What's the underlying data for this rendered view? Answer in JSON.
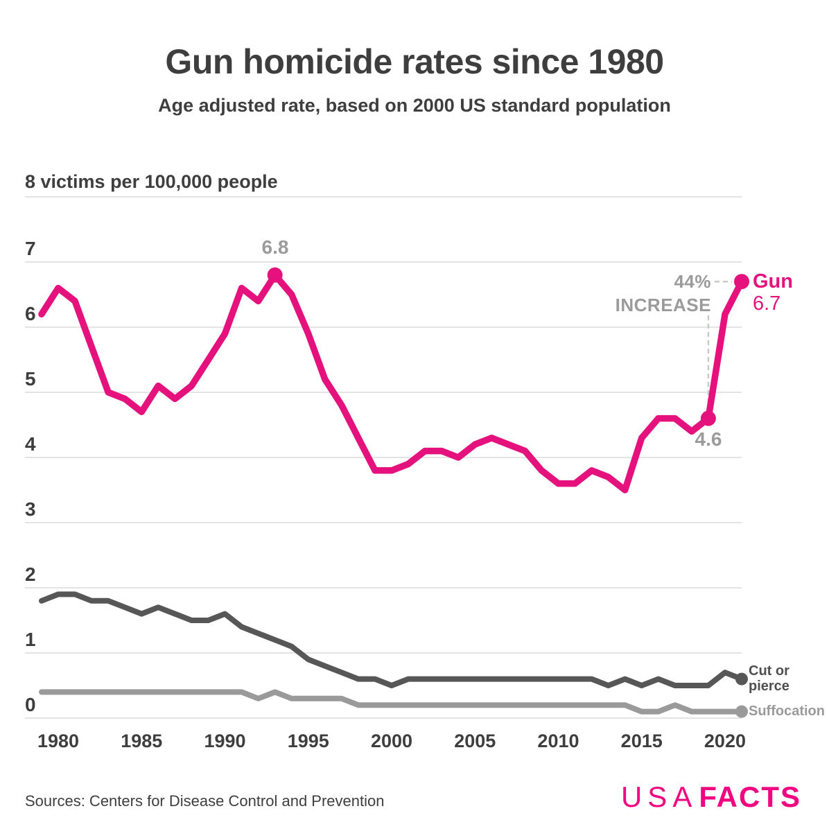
{
  "chart_data": {
    "type": "line",
    "title": "Gun homicide rates since 1980",
    "subtitle": "Age adjusted rate, based on 2000 US standard population",
    "unit_label": "8 victims per 100,000 people",
    "ylabel": "victims per 100,000 people",
    "xlabel": "",
    "grid": true,
    "ylim": [
      0,
      8
    ],
    "y_ticks": [
      0,
      1,
      2,
      3,
      4,
      5,
      6,
      7
    ],
    "x_tick_years": [
      1980,
      1985,
      1990,
      1995,
      2000,
      2005,
      2010,
      2015,
      2020
    ],
    "x": [
      1979,
      1980,
      1981,
      1982,
      1983,
      1984,
      1985,
      1986,
      1987,
      1988,
      1989,
      1990,
      1991,
      1992,
      1993,
      1994,
      1995,
      1996,
      1997,
      1998,
      1999,
      2000,
      2001,
      2002,
      2003,
      2004,
      2005,
      2006,
      2007,
      2008,
      2009,
      2010,
      2011,
      2012,
      2013,
      2014,
      2015,
      2016,
      2017,
      2018,
      2019,
      2020,
      2021
    ],
    "series": [
      {
        "name": "Gun",
        "color": "#e5127e",
        "markers": [
          1993,
          2019,
          2021
        ],
        "end_label": "Gun",
        "values": [
          6.2,
          6.6,
          6.4,
          5.7,
          5.0,
          4.9,
          4.7,
          5.1,
          4.9,
          5.1,
          5.5,
          5.9,
          6.6,
          6.4,
          6.8,
          6.5,
          5.9,
          5.2,
          4.8,
          4.3,
          3.8,
          3.8,
          3.9,
          4.1,
          4.1,
          4.0,
          4.2,
          4.3,
          4.2,
          4.1,
          3.8,
          3.6,
          3.6,
          3.8,
          3.7,
          3.5,
          4.3,
          4.6,
          4.6,
          4.4,
          4.6,
          6.2,
          6.7
        ]
      },
      {
        "name": "Cut or pierce",
        "color": "#575757",
        "markers": [
          2021
        ],
        "end_label": "Cut or pierce",
        "values": [
          1.8,
          1.9,
          1.9,
          1.8,
          1.8,
          1.7,
          1.6,
          1.7,
          1.6,
          1.5,
          1.5,
          1.6,
          1.4,
          1.3,
          1.2,
          1.1,
          0.9,
          0.8,
          0.7,
          0.6,
          0.6,
          0.5,
          0.6,
          0.6,
          0.6,
          0.6,
          0.6,
          0.6,
          0.6,
          0.6,
          0.6,
          0.6,
          0.6,
          0.6,
          0.5,
          0.6,
          0.5,
          0.6,
          0.5,
          0.5,
          0.5,
          0.7,
          0.6
        ]
      },
      {
        "name": "Suffocation",
        "color": "#9a9a9a",
        "markers": [
          2021
        ],
        "end_label": "Suffocation",
        "values": [
          0.4,
          0.4,
          0.4,
          0.4,
          0.4,
          0.4,
          0.4,
          0.4,
          0.4,
          0.4,
          0.4,
          0.4,
          0.4,
          0.3,
          0.4,
          0.3,
          0.3,
          0.3,
          0.3,
          0.2,
          0.2,
          0.2,
          0.2,
          0.2,
          0.2,
          0.2,
          0.2,
          0.2,
          0.2,
          0.2,
          0.2,
          0.2,
          0.2,
          0.2,
          0.2,
          0.2,
          0.1,
          0.1,
          0.2,
          0.1,
          0.1,
          0.1,
          0.1
        ]
      }
    ],
    "annotations": {
      "peak": {
        "label": "6.8",
        "year": 1993,
        "value": 6.8
      },
      "dip": {
        "label": "4.6",
        "year": 2019,
        "value": 4.6
      },
      "end": {
        "label": "Gun",
        "value_label": "6.7",
        "year": 2021,
        "value": 6.7
      },
      "increase": {
        "line1": "44%",
        "line2": "INCREASE"
      }
    },
    "colors": {
      "accent_pink": "#e5127e",
      "dark_gray_line": "#575757",
      "light_gray_line": "#9a9a9a",
      "annotation_gray": "#9b9b9b",
      "gridline": "#e4e4e4",
      "text": "#3e3e3e",
      "logo_pink": "#f0047f"
    }
  },
  "footer": {
    "sources": "Sources: Centers for Disease Control and Prevention",
    "logo": {
      "part1": "USA",
      "part2": "FACTS"
    }
  }
}
